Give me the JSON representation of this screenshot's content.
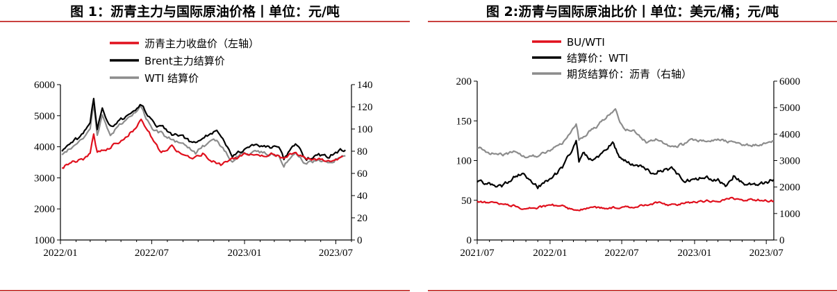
{
  "colors": {
    "red": "#e0101d",
    "black": "#000000",
    "gray": "#8c8c8c",
    "rule": "#c9413f"
  },
  "chart_data": [
    {
      "type": "line",
      "title": "图 1：沥青主力与国际原油价格丨单位：元/吨",
      "x_ticks": [
        "2022/01",
        "2022/07",
        "2023/01",
        "2023/07"
      ],
      "y_left": {
        "range": [
          1000,
          6000
        ],
        "ticks": [
          "1000",
          "2000",
          "3000",
          "4000",
          "5000",
          "6000"
        ]
      },
      "y_right": {
        "range": [
          0,
          140
        ],
        "ticks": [
          "0",
          "20",
          "40",
          "60",
          "80",
          "100",
          "120",
          "140"
        ]
      },
      "series": [
        {
          "name": "沥青主力收盘价（左轴）",
          "axis": "left",
          "color": "red",
          "x": [
            "2022-01-04",
            "2022-01-25",
            "2022-02-15",
            "2022-03-01",
            "2022-03-08",
            "2022-03-15",
            "2022-04-01",
            "2022-04-20",
            "2022-05-10",
            "2022-05-30",
            "2022-06-10",
            "2022-06-20",
            "2022-07-05",
            "2022-07-20",
            "2022-08-10",
            "2022-09-01",
            "2022-09-20",
            "2022-10-10",
            "2022-10-25",
            "2022-11-15",
            "2022-12-01",
            "2022-12-20",
            "2023-01-10",
            "2023-02-01",
            "2023-03-01",
            "2023-03-20",
            "2023-04-10",
            "2023-05-01",
            "2023-05-20",
            "2023-06-10",
            "2023-07-01",
            "2023-07-15"
          ],
          "values": [
            3350,
            3500,
            3600,
            3800,
            4400,
            3800,
            3900,
            4100,
            4300,
            4600,
            4900,
            4600,
            4200,
            3800,
            4000,
            3700,
            3650,
            3800,
            3600,
            3400,
            3550,
            3650,
            3800,
            3700,
            3800,
            3600,
            3800,
            3650,
            3600,
            3550,
            3600,
            3700
          ]
        },
        {
          "name": "Brent主力结算价",
          "axis": "right",
          "color": "black",
          "x": [
            "2022-01-04",
            "2022-01-25",
            "2022-02-15",
            "2022-03-01",
            "2022-03-08",
            "2022-03-15",
            "2022-03-25",
            "2022-04-10",
            "2022-05-01",
            "2022-05-20",
            "2022-06-08",
            "2022-06-20",
            "2022-07-05",
            "2022-07-20",
            "2022-08-10",
            "2022-09-01",
            "2022-09-26",
            "2022-10-10",
            "2022-11-07",
            "2022-11-25",
            "2022-12-08",
            "2022-12-25",
            "2023-01-10",
            "2023-01-25",
            "2023-02-15",
            "2023-03-10",
            "2023-03-20",
            "2023-04-12",
            "2023-05-04",
            "2023-05-25",
            "2023-06-15",
            "2023-07-10",
            "2023-07-20"
          ],
          "values": [
            80,
            88,
            95,
            105,
            128,
            100,
            118,
            102,
            108,
            112,
            122,
            115,
            104,
            102,
            96,
            92,
            86,
            93,
            97,
            86,
            77,
            81,
            82,
            86,
            83,
            83,
            73,
            86,
            72,
            77,
            75,
            80,
            81
          ]
        },
        {
          "name": "WTI 结算价",
          "axis": "right",
          "color": "gray",
          "x": [
            "2022-01-04",
            "2022-01-25",
            "2022-02-15",
            "2022-03-01",
            "2022-03-08",
            "2022-03-15",
            "2022-03-25",
            "2022-04-10",
            "2022-05-01",
            "2022-05-20",
            "2022-06-08",
            "2022-06-20",
            "2022-07-05",
            "2022-07-20",
            "2022-08-10",
            "2022-09-01",
            "2022-09-26",
            "2022-10-10",
            "2022-11-07",
            "2022-11-25",
            "2022-12-08",
            "2022-12-25",
            "2023-01-10",
            "2023-01-25",
            "2023-02-15",
            "2023-03-10",
            "2023-03-20",
            "2023-04-12",
            "2023-05-04",
            "2023-05-25",
            "2023-06-15",
            "2023-07-10",
            "2023-07-20"
          ],
          "values": [
            76,
            85,
            92,
            100,
            123,
            96,
            112,
            96,
            104,
            110,
            120,
            110,
            98,
            96,
            90,
            87,
            77,
            85,
            90,
            78,
            72,
            78,
            76,
            80,
            77,
            78,
            67,
            80,
            68,
            72,
            70,
            75,
            76
          ]
        }
      ]
    },
    {
      "type": "line",
      "title": "图 2:沥青与国际原油比价丨单位：美元/桶；元/吨",
      "x_ticks": [
        "2021/07",
        "2022/01",
        "2022/07",
        "2023/01",
        "2023/07"
      ],
      "y_left": {
        "range": [
          0,
          200
        ],
        "ticks": [
          "0",
          "50",
          "100",
          "150",
          "200"
        ]
      },
      "y_right": {
        "range": [
          0,
          6000
        ],
        "ticks": [
          "0",
          "1000",
          "2000",
          "3000",
          "4000",
          "5000",
          "6000"
        ]
      },
      "series": [
        {
          "name": "BU/WTI",
          "axis": "left",
          "color": "red",
          "x": [
            "2021-07-01",
            "2021-08-01",
            "2021-09-01",
            "2021-10-01",
            "2021-11-01",
            "2021-12-01",
            "2022-01-01",
            "2022-02-01",
            "2022-03-08",
            "2022-04-01",
            "2022-05-01",
            "2022-06-01",
            "2022-07-01",
            "2022-08-01",
            "2022-09-01",
            "2022-10-01",
            "2022-11-01",
            "2022-12-01",
            "2023-01-01",
            "2023-02-01",
            "2023-03-01",
            "2023-04-01",
            "2023-05-01",
            "2023-06-01",
            "2023-07-01",
            "2023-07-20"
          ],
          "values": [
            48,
            47,
            45,
            43,
            39,
            41,
            44,
            43,
            36,
            40,
            41,
            40,
            41,
            42,
            45,
            47,
            44,
            46,
            48,
            49,
            50,
            52,
            50,
            51,
            50,
            49
          ]
        },
        {
          "name": "结算价：WTI",
          "axis": "left",
          "color": "black",
          "x": [
            "2021-07-01",
            "2021-08-01",
            "2021-09-01",
            "2021-10-01",
            "2021-10-25",
            "2021-12-01",
            "2022-01-01",
            "2022-02-01",
            "2022-03-08",
            "2022-03-15",
            "2022-03-25",
            "2022-04-15",
            "2022-05-15",
            "2022-06-08",
            "2022-06-25",
            "2022-07-15",
            "2022-08-15",
            "2022-09-15",
            "2022-10-10",
            "2022-11-07",
            "2022-12-08",
            "2023-01-01",
            "2023-02-01",
            "2023-03-01",
            "2023-03-20",
            "2023-04-12",
            "2023-05-04",
            "2023-06-01",
            "2023-07-01",
            "2023-07-20"
          ],
          "values": [
            74,
            70,
            68,
            78,
            84,
            67,
            78,
            90,
            123,
            98,
            112,
            100,
            110,
            122,
            105,
            98,
            92,
            85,
            88,
            90,
            74,
            78,
            78,
            76,
            68,
            82,
            70,
            70,
            73,
            76
          ]
        },
        {
          "name": "期货结算价：沥青（右轴）",
          "axis": "right",
          "color": "gray",
          "x": [
            "2021-07-01",
            "2021-08-01",
            "2021-09-01",
            "2021-10-01",
            "2021-11-01",
            "2021-12-01",
            "2022-01-01",
            "2022-02-01",
            "2022-03-08",
            "2022-03-15",
            "2022-04-01",
            "2022-05-01",
            "2022-06-01",
            "2022-06-15",
            "2022-07-05",
            "2022-08-01",
            "2022-09-01",
            "2022-10-01",
            "2022-11-01",
            "2022-12-01",
            "2023-01-01",
            "2023-02-01",
            "2023-03-01",
            "2023-04-01",
            "2023-05-01",
            "2023-06-01",
            "2023-07-01",
            "2023-07-20"
          ],
          "values": [
            3500,
            3300,
            3200,
            3300,
            3100,
            3200,
            3400,
            3600,
            4400,
            3800,
            4000,
            4300,
            4800,
            4900,
            4200,
            4100,
            3700,
            3800,
            3500,
            3600,
            3800,
            3700,
            3800,
            3700,
            3600,
            3600,
            3650,
            3750
          ]
        }
      ]
    }
  ]
}
